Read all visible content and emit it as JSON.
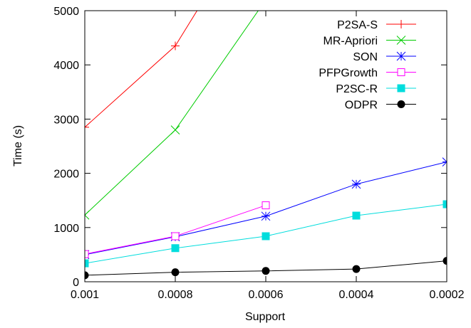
{
  "chart_data": {
    "type": "line",
    "title": "",
    "xlabel": "Support",
    "ylabel": "Time (s)",
    "x": [
      0.001,
      0.0008,
      0.0006,
      0.0004,
      0.0002
    ],
    "x_tick_labels": [
      "0.001",
      "0.0008",
      "0.0006",
      "0.0004",
      "0.0002"
    ],
    "xlim": [
      0.001,
      0.0002
    ],
    "ylim": [
      0,
      5000
    ],
    "y_ticks": [
      0,
      1000,
      2000,
      3000,
      4000,
      5000
    ],
    "y_tick_labels": [
      "0",
      "1000",
      "2000",
      "3000",
      "4000",
      "5000"
    ],
    "grid": false,
    "legend_position": "top-right",
    "series": [
      {
        "name": "P2SA-S",
        "color": "#ff0000",
        "marker": "plus",
        "x": [
          0.001,
          0.0008,
          0.0007
        ],
        "values": [
          2850,
          4350,
          5700
        ]
      },
      {
        "name": "MR-Apriori",
        "color": "#00cc00",
        "marker": "cross",
        "x": [
          0.001,
          0.0008,
          0.0006
        ],
        "values": [
          1230,
          2800,
          5200
        ]
      },
      {
        "name": "SON",
        "color": "#0000ff",
        "marker": "asterisk",
        "x": [
          0.001,
          0.0008,
          0.0006,
          0.0004,
          0.0002
        ],
        "values": [
          500,
          830,
          1210,
          1800,
          2210
        ]
      },
      {
        "name": "PFPGrowth",
        "color": "#ff00ff",
        "marker": "square-open",
        "x": [
          0.001,
          0.0008,
          0.0006
        ],
        "values": [
          510,
          840,
          1410
        ]
      },
      {
        "name": "P2SC-R",
        "color": "#00dddd",
        "marker": "square-filled",
        "x": [
          0.001,
          0.0008,
          0.0006,
          0.0004,
          0.0002
        ],
        "values": [
          340,
          620,
          840,
          1220,
          1430
        ]
      },
      {
        "name": "ODPR",
        "color": "#000000",
        "marker": "circle-filled",
        "x": [
          0.001,
          0.0008,
          0.0006,
          0.0004,
          0.0002
        ],
        "values": [
          120,
          175,
          200,
          235,
          385
        ]
      }
    ]
  }
}
